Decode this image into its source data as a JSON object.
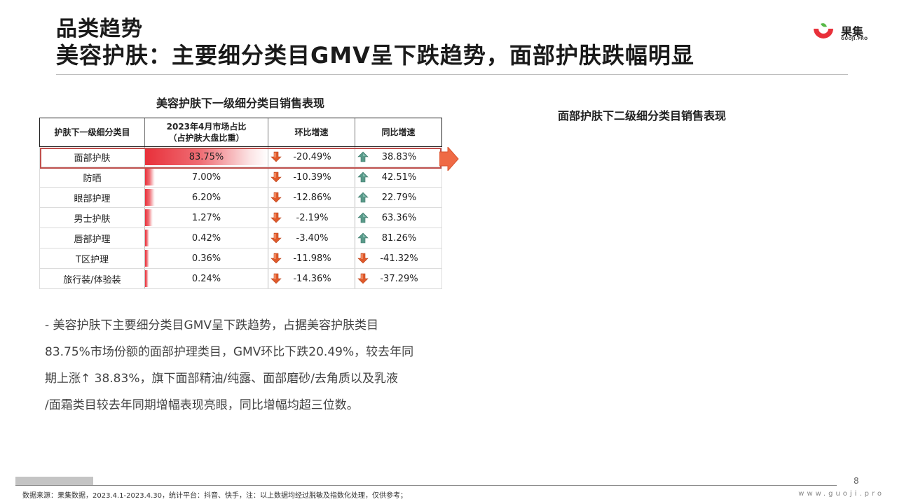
{
  "header": {
    "title_small": "品类趋势",
    "title_main": "美容护肤：主要细分类目GMV呈下跌趋势，面部护肤跌幅明显"
  },
  "logo": {
    "cn": "果集",
    "en": "GUOJI.PRO",
    "colors": {
      "red": "#e8303a",
      "green": "#58b947"
    }
  },
  "table": {
    "title": "美容护肤下一级细分类目销售表现",
    "columns": [
      "护肤下一级细分类目",
      "2023年4月市场占比",
      "（占护肤大盘比重）",
      "环比增速",
      "同比增速"
    ],
    "rows": [
      {
        "name": "面部护肤",
        "share": "83.75%",
        "share_value": 83.75,
        "mom": "-20.49%",
        "mom_dir": "down",
        "yoy": "38.83%",
        "yoy_dir": "up"
      },
      {
        "name": "防晒",
        "share": "7.00%",
        "share_value": 7.0,
        "mom": "-10.39%",
        "mom_dir": "down",
        "yoy": "42.51%",
        "yoy_dir": "up"
      },
      {
        "name": "眼部护理",
        "share": "6.20%",
        "share_value": 6.2,
        "mom": "-12.86%",
        "mom_dir": "down",
        "yoy": "22.79%",
        "yoy_dir": "up"
      },
      {
        "name": "男士护肤",
        "share": "1.27%",
        "share_value": 1.27,
        "mom": "-2.19%",
        "mom_dir": "down",
        "yoy": "63.36%",
        "yoy_dir": "up"
      },
      {
        "name": "唇部护理",
        "share": "0.42%",
        "share_value": 0.42,
        "mom": "-3.40%",
        "mom_dir": "down",
        "yoy": "81.26%",
        "yoy_dir": "up"
      },
      {
        "name": "T区护理",
        "share": "0.36%",
        "share_value": 0.36,
        "mom": "-11.98%",
        "mom_dir": "down",
        "yoy": "-41.32%",
        "yoy_dir": "down"
      },
      {
        "name": "旅行装/体验装",
        "share": "0.24%",
        "share_value": 0.24,
        "mom": "-14.36%",
        "mom_dir": "down",
        "yoy": "-37.29%",
        "yoy_dir": "down"
      }
    ],
    "colors": {
      "down": "#e05a2b",
      "up": "#5a9a8a",
      "highlight_border": "#c0504d",
      "arrow": "#ef6a45"
    }
  },
  "right_panel": {
    "title": "面部护肤下二级细分类目销售表现"
  },
  "paragraph": {
    "lines": [
      "-  美容护肤下主要细分类目GMV呈下跌趋势，占据美容护肤类目",
      "83.75%市场份额的面部护理类目，GMV环比下跌20.49%，较去年同",
      "期上涨↑ 38.83%，旗下面部精油/纯露、面部磨砂/去角质以及乳液",
      "/面霜类目较去年同期增幅表现亮眼，同比增幅均超三位数。"
    ]
  },
  "footer": {
    "page_number": "8",
    "source": "数据来源：果集数据，2023.4.1-2023.4.30，统计平台：抖音、快手，注：以上数据均经过脱敏及指数化处理，仅供参考；",
    "website": "www.guoji.pro"
  }
}
